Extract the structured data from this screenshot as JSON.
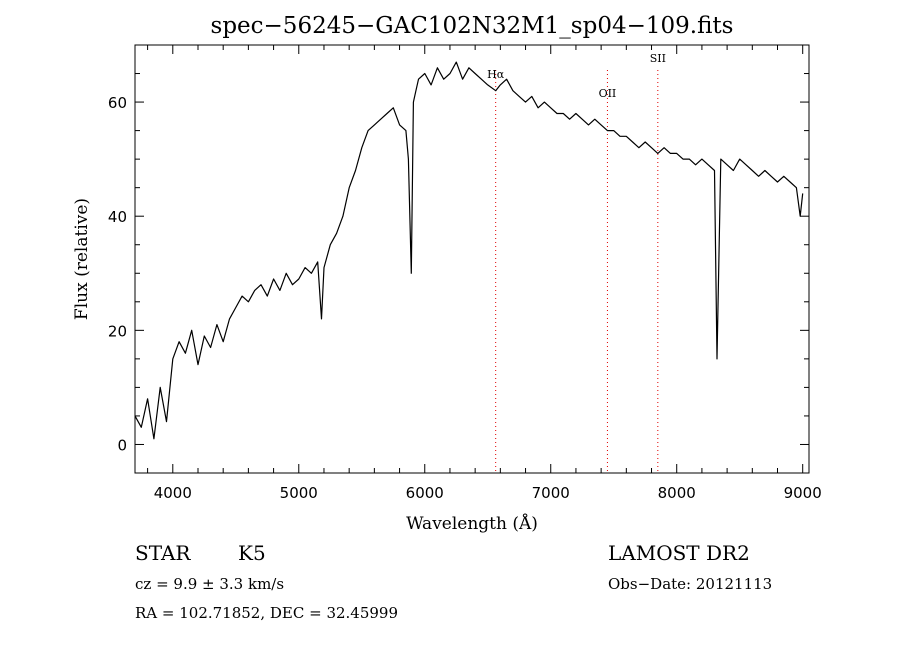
{
  "chart_data": {
    "type": "line",
    "title": "spec−56245−GAC102N32M1_sp04−109.fits",
    "xlabel": "Wavelength (Å)",
    "ylabel": "Flux (relative)",
    "xlim": [
      3700,
      9050
    ],
    "ylim": [
      -5,
      70
    ],
    "x_ticks": [
      4000,
      5000,
      6000,
      7000,
      8000,
      9000
    ],
    "y_ticks": [
      0,
      20,
      40,
      60
    ],
    "x_tick_labels": [
      "4000",
      "5000",
      "6000",
      "7000",
      "8000",
      "9000"
    ],
    "y_tick_labels": [
      "0",
      "20",
      "40",
      "60"
    ],
    "grid": false,
    "series": [
      {
        "color": "#000000",
        "x": [
          3700,
          3750,
          3800,
          3850,
          3900,
          3950,
          4000,
          4050,
          4100,
          4150,
          4200,
          4250,
          4300,
          4350,
          4400,
          4450,
          4500,
          4550,
          4600,
          4650,
          4700,
          4750,
          4800,
          4850,
          4900,
          4950,
          5000,
          5050,
          5100,
          5150,
          5180,
          5200,
          5250,
          5300,
          5350,
          5400,
          5450,
          5500,
          5550,
          5600,
          5650,
          5700,
          5750,
          5800,
          5850,
          5870,
          5893,
          5910,
          5930,
          5950,
          6000,
          6050,
          6100,
          6150,
          6200,
          6250,
          6300,
          6350,
          6400,
          6450,
          6500,
          6563,
          6600,
          6650,
          6700,
          6750,
          6800,
          6850,
          6900,
          6950,
          7000,
          7050,
          7100,
          7150,
          7200,
          7250,
          7300,
          7350,
          7400,
          7450,
          7500,
          7550,
          7600,
          7650,
          7700,
          7750,
          7800,
          7850,
          7900,
          7950,
          8000,
          8050,
          8100,
          8150,
          8200,
          8250,
          8300,
          8320,
          8350,
          8400,
          8450,
          8500,
          8550,
          8600,
          8650,
          8700,
          8750,
          8800,
          8850,
          8900,
          8950,
          8980,
          9000
        ],
        "y": [
          5,
          3,
          8,
          1,
          10,
          4,
          15,
          18,
          16,
          20,
          14,
          19,
          17,
          21,
          18,
          22,
          24,
          26,
          25,
          27,
          28,
          26,
          29,
          27,
          30,
          28,
          29,
          31,
          30,
          32,
          22,
          31,
          35,
          37,
          40,
          45,
          48,
          52,
          55,
          56,
          57,
          58,
          59,
          56,
          55,
          50,
          30,
          60,
          62,
          64,
          65,
          63,
          66,
          64,
          65,
          67,
          64,
          66,
          65,
          64,
          63,
          62,
          63,
          64,
          62,
          61,
          60,
          61,
          59,
          60,
          59,
          58,
          58,
          57,
          58,
          57,
          56,
          57,
          56,
          55,
          55,
          54,
          54,
          53,
          52,
          53,
          52,
          51,
          52,
          51,
          51,
          50,
          50,
          49,
          50,
          49,
          48,
          15,
          50,
          49,
          48,
          50,
          49,
          48,
          47,
          48,
          47,
          46,
          47,
          46,
          45,
          40,
          44
        ]
      }
    ],
    "annotations": [
      {
        "label": "Hα",
        "x": 6563
      },
      {
        "label": "OII",
        "x": 7450
      },
      {
        "label": "SII",
        "x": 7850
      }
    ]
  },
  "info": {
    "object_class": "STAR",
    "subclass": "K5",
    "survey": "LAMOST DR2",
    "cz": "cz = 9.9 ± 3.3 km/s",
    "obs_date": "Obs−Date: 20121113",
    "radec": "RA = 102.71852, DEC =  32.45999"
  }
}
